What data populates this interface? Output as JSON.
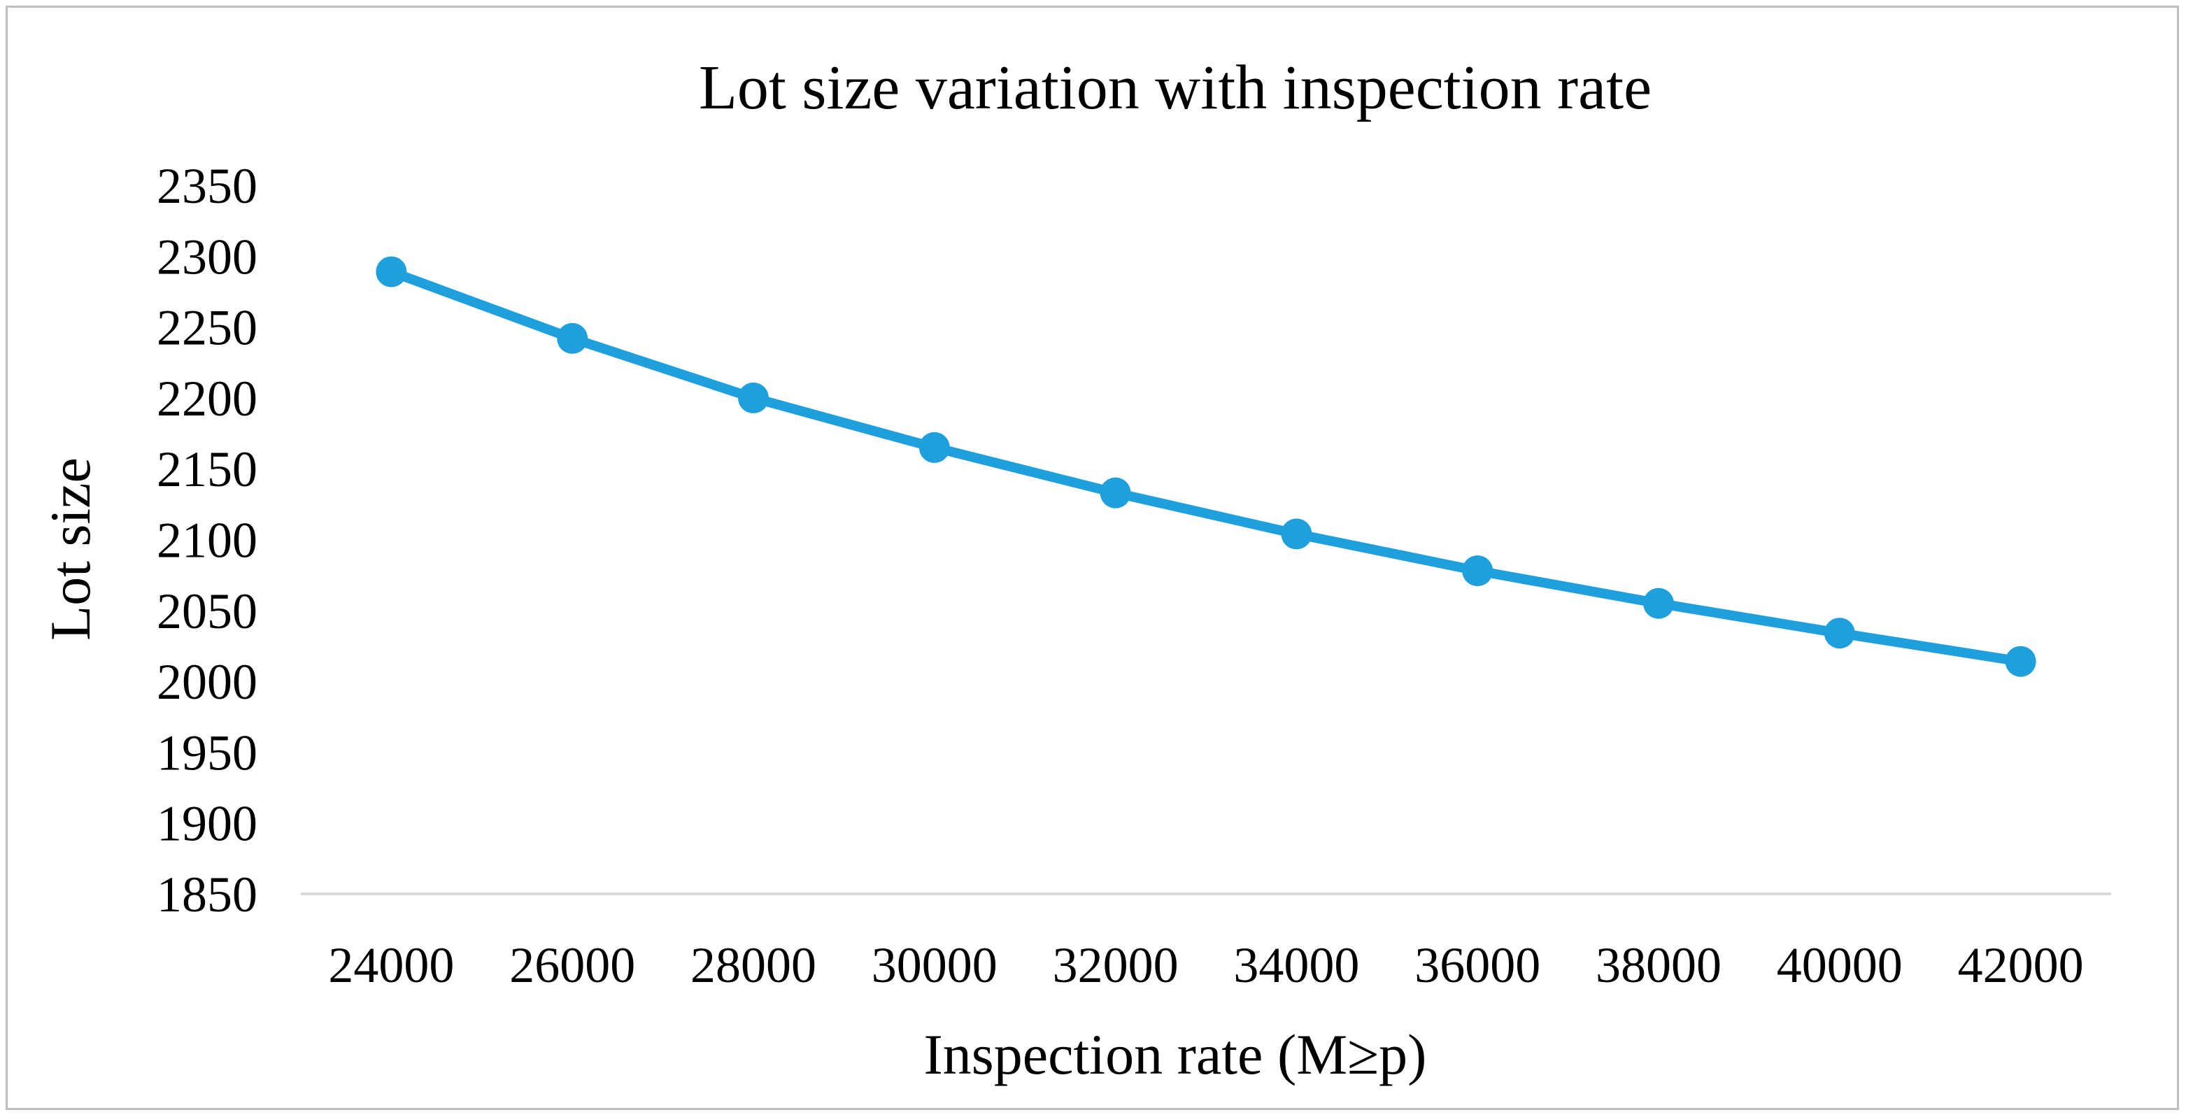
{
  "chart_data": {
    "type": "line",
    "title": "Lot size variation with inspection rate",
    "xlabel": "Inspection rate (M≥p)",
    "ylabel": "Lot size",
    "categories": [
      "24000",
      "26000",
      "28000",
      "30000",
      "32000",
      "34000",
      "36000",
      "38000",
      "40000",
      "42000"
    ],
    "series": [
      {
        "name": "Lot size",
        "values": [
          2289,
          2242,
          2200,
          2165,
          2133,
          2104,
          2078,
          2055,
          2034,
          2014
        ]
      }
    ],
    "y_ticks": [
      "1850",
      "1900",
      "1950",
      "2000",
      "2050",
      "2100",
      "2150",
      "2200",
      "2250",
      "2300",
      "2350"
    ],
    "ylim": [
      1850,
      2350
    ],
    "grid": false,
    "legend": "none",
    "colors": {
      "series": "#1F9FDC",
      "axis": "#d9d9d9",
      "frame": "#bfbfbf"
    }
  }
}
